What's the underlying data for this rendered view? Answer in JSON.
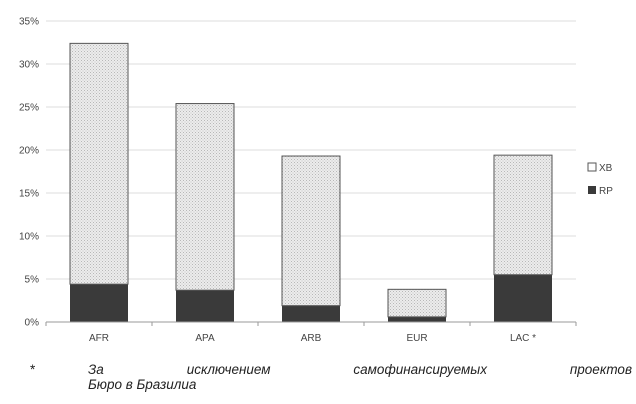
{
  "chart_data": {
    "type": "bar",
    "stacked": true,
    "categories": [
      "AFR",
      "APA",
      "ARB",
      "EUR",
      "LAC *"
    ],
    "series": [
      {
        "name": "RP",
        "color": "#3a3a3a",
        "values": [
          4.4,
          3.7,
          1.9,
          0.6,
          5.5
        ]
      },
      {
        "name": "XB",
        "color": "#e6e6e6",
        "values": [
          28.0,
          21.7,
          17.4,
          3.2,
          13.9
        ]
      }
    ],
    "yticks": [
      "0%",
      "5%",
      "10%",
      "15%",
      "20%",
      "25%",
      "30%",
      "35%"
    ],
    "ylim": [
      0,
      35
    ],
    "grid": true,
    "legend_position": "right"
  },
  "footnote": {
    "marker": "*",
    "words_line1": [
      "За",
      "исключением",
      "самофинансируемых",
      "проектов"
    ],
    "line2": "Бюро в Бразилиа"
  }
}
